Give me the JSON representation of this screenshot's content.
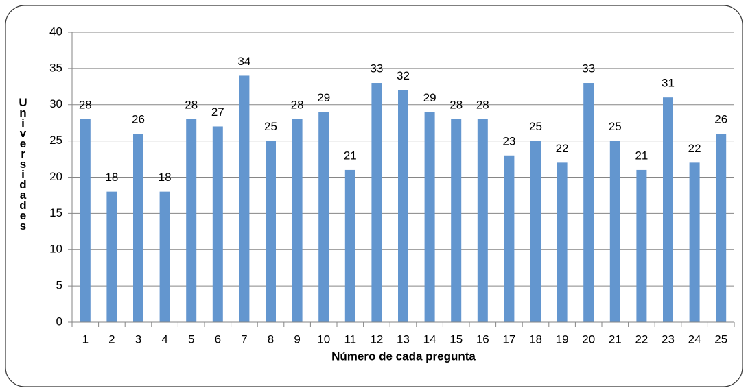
{
  "chart_data": {
    "type": "bar",
    "x_label": "Número de cada pregunta",
    "y_label": "Universidades",
    "categories": [
      "1",
      "2",
      "3",
      "4",
      "5",
      "6",
      "7",
      "8",
      "9",
      "10",
      "11",
      "12",
      "13",
      "14",
      "15",
      "16",
      "17",
      "18",
      "19",
      "20",
      "21",
      "22",
      "23",
      "24",
      "25"
    ],
    "values": [
      28,
      18,
      26,
      18,
      28,
      27,
      34,
      25,
      28,
      29,
      21,
      33,
      32,
      29,
      28,
      28,
      23,
      25,
      22,
      33,
      25,
      21,
      31,
      22,
      26
    ],
    "color": "#6396cf",
    "ylim": [
      0,
      40
    ],
    "yticks": [
      0,
      5,
      10,
      15,
      20,
      25,
      30,
      35,
      40
    ],
    "grid": true
  }
}
